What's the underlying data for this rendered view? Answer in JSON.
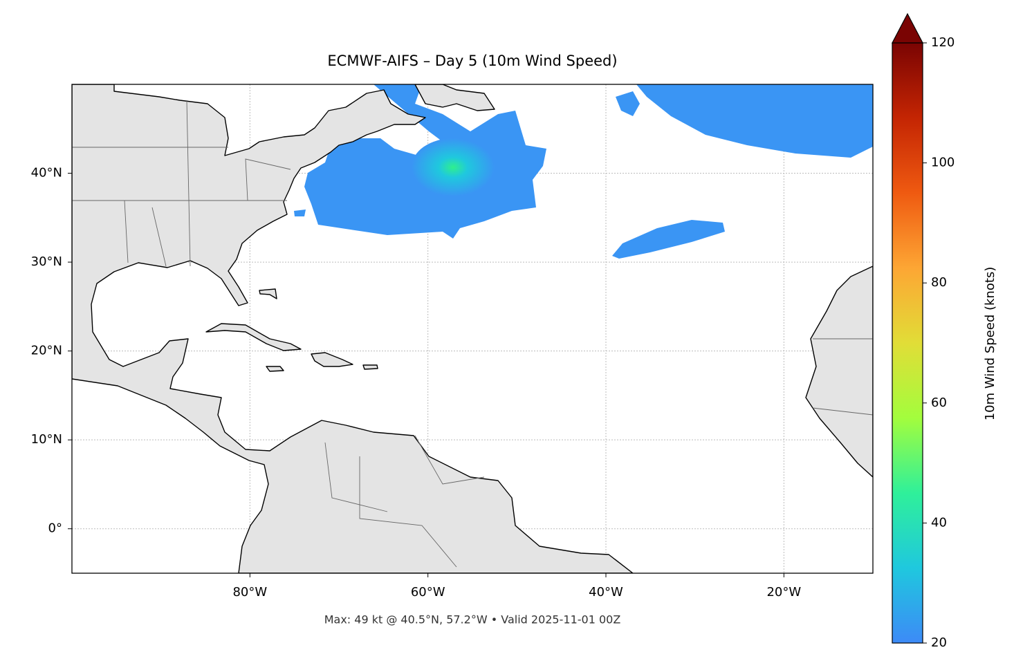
{
  "chart_data": {
    "type": "map",
    "title": "ECMWF-AIFS – Day 5 (10m Wind Speed)",
    "note": "Max: 49 kt @ 40.5°N, 57.2°W • Valid 2025-11-01 00Z",
    "xlim": [
      -100,
      -10
    ],
    "ylim": [
      -5,
      50
    ],
    "xticks": [
      {
        "value": -80,
        "label": "80°W"
      },
      {
        "value": -60,
        "label": "60°W"
      },
      {
        "value": -40,
        "label": "40°W"
      },
      {
        "value": -20,
        "label": "20°W"
      }
    ],
    "yticks": [
      {
        "value": 0,
        "label": "0°"
      },
      {
        "value": 10,
        "label": "10°N"
      },
      {
        "value": 20,
        "label": "20°N"
      },
      {
        "value": 30,
        "label": "30°N"
      },
      {
        "value": 40,
        "label": "40°N"
      }
    ],
    "grid": true,
    "colorbar": {
      "label": "10m Wind Speed (knots)",
      "lim": [
        20,
        120
      ],
      "ticks": [
        20,
        40,
        60,
        80,
        100,
        120
      ],
      "colors": [
        "#3d8af7",
        "#1fc8de",
        "#2ff09a",
        "#a3fd3d",
        "#e1dd37",
        "#fda634",
        "#ef5a11",
        "#c42503",
        "#7a0403"
      ]
    }
  }
}
